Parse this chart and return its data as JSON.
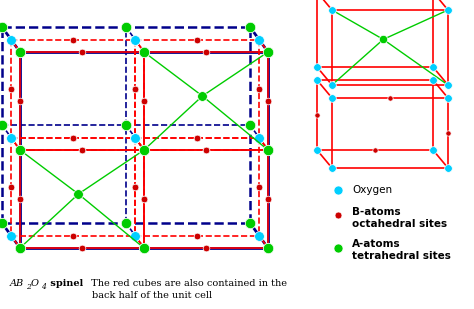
{
  "bg_color": "#ffffff",
  "navy": "#00008B",
  "red": "#FF0000",
  "cyan": "#00CFFF",
  "green": "#00CC00",
  "dark_red": "#CC0000",
  "title_line1": "AB",
  "title_sub": "2",
  "title_line1b": "O",
  "title_sub2": "4",
  "title_bold": " spinel",
  "title_rest": " The red cubes are also contained in the",
  "title_line2": "back half of the unit cell",
  "legend_oxygen": "Oxygen",
  "legend_B1": "B-atoms",
  "legend_B2": "octahedral sites",
  "legend_A1": "A-atoms",
  "legend_A2": "tetrahedral sites"
}
